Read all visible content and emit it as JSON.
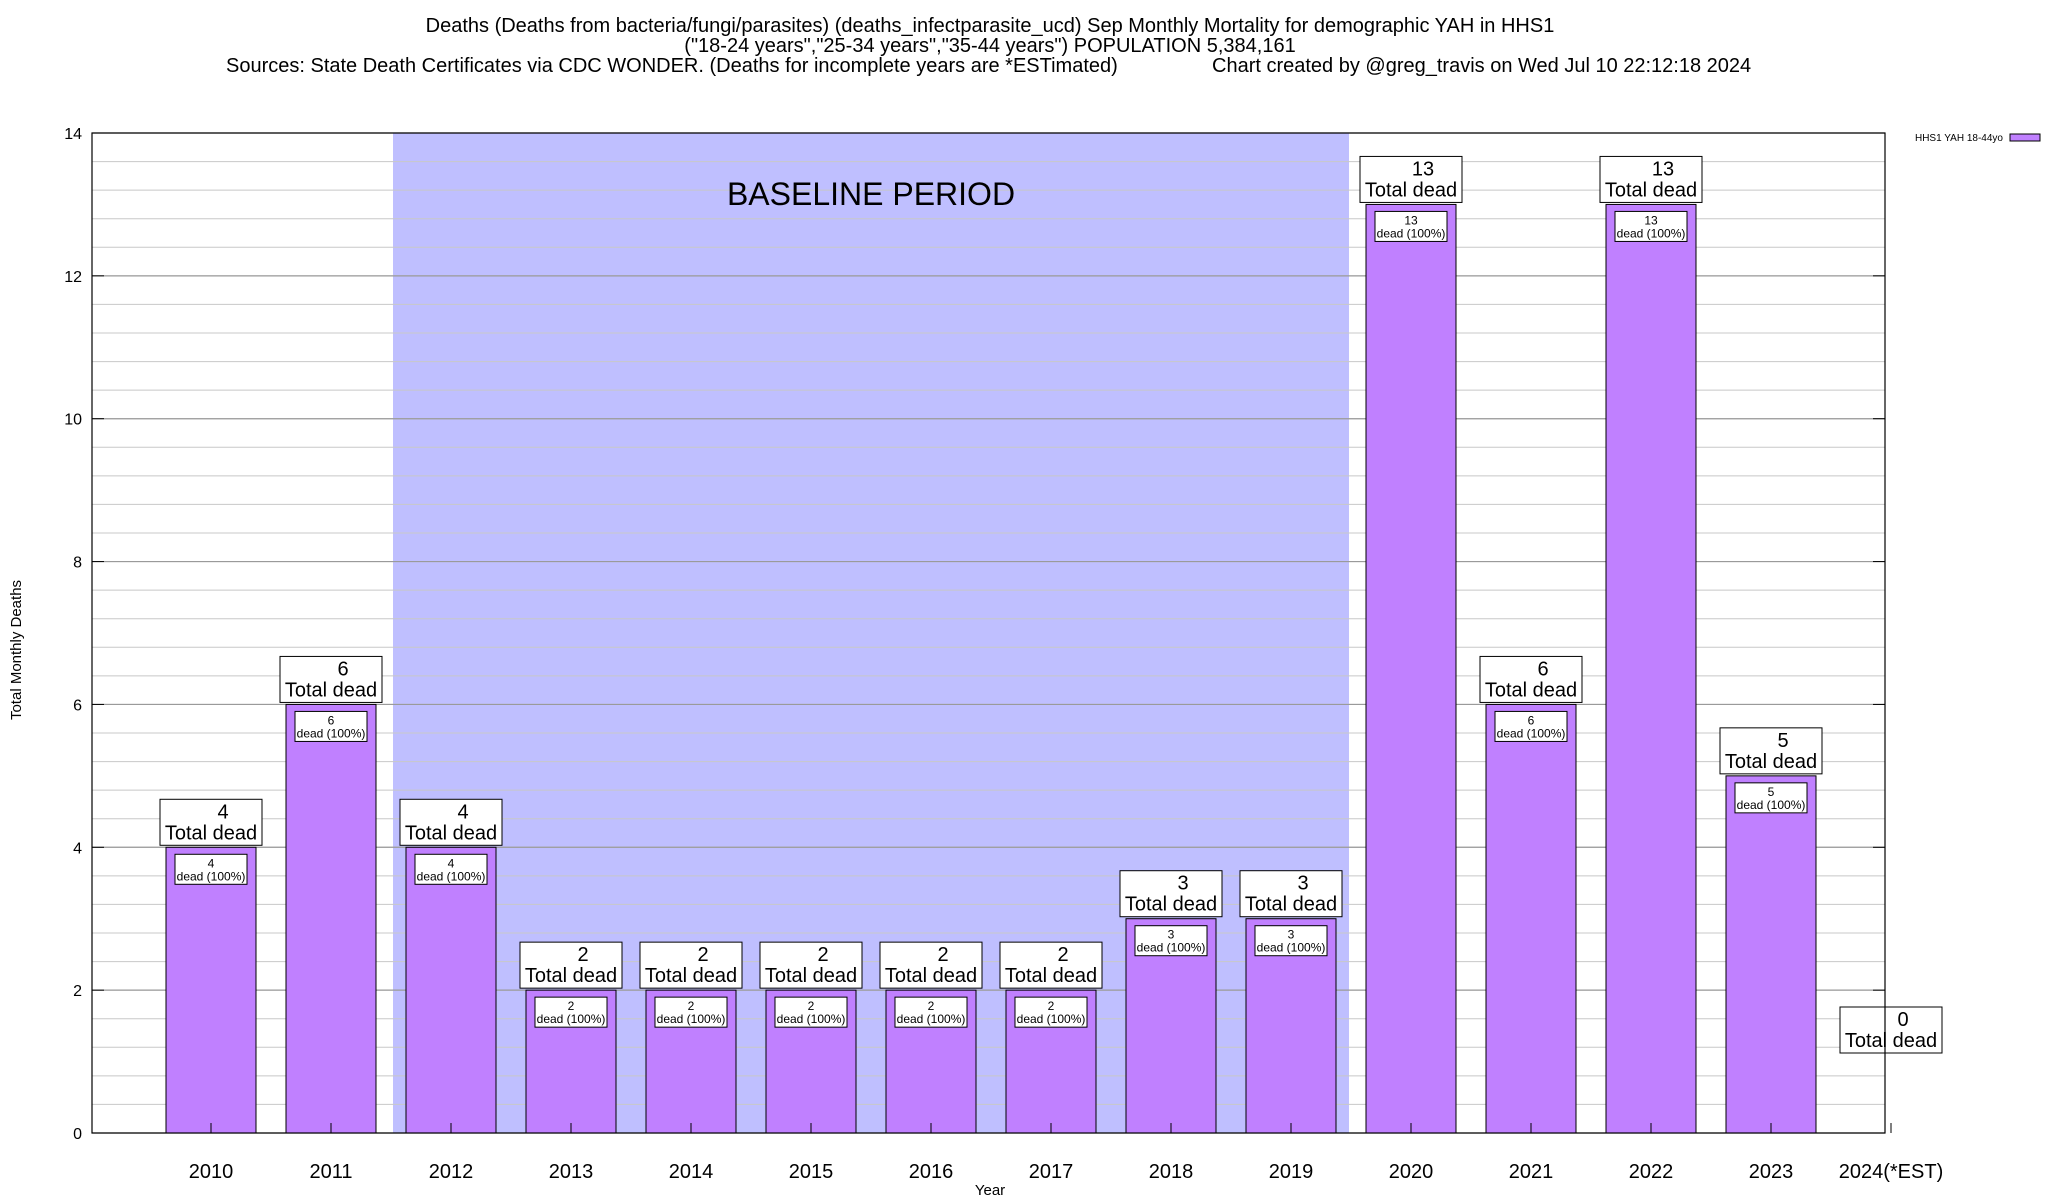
{
  "titles": {
    "line1": "Deaths (Deaths from bacteria/fungi/parasites) (deaths_infectparasite_ucd) Sep Monthly Mortality for demographic YAH in HHS1",
    "line2": "(\"18-24 years\",\"25-34 years\",\"35-44 years\") POPULATION 5,384,161",
    "line3_left": "Sources: State Death Certificates via CDC WONDER. (Deaths for incomplete years are *ESTimated)",
    "line3_right": "Chart created by @greg_travis on Wed Jul 10 22:12:18 2024"
  },
  "chart_data": {
    "type": "bar",
    "categories": [
      "2010",
      "2011",
      "2012",
      "2013",
      "2014",
      "2015",
      "2016",
      "2017",
      "2018",
      "2019",
      "2020",
      "2021",
      "2022",
      "2023",
      "2024(*EST)"
    ],
    "series": [
      {
        "name": "HHS1 YAH 18-44yo",
        "values": [
          4,
          6,
          4,
          2,
          2,
          2,
          2,
          2,
          3,
          3,
          13,
          6,
          13,
          5,
          0
        ]
      }
    ],
    "total_labels": [
      "4",
      "6",
      "4",
      "2",
      "2",
      "2",
      "2",
      "2",
      "3",
      "3",
      "13",
      "6",
      "13",
      "5",
      "0"
    ],
    "total_label_suffix": "Total dead",
    "bar_labels": [
      "4",
      "6",
      "4",
      "2",
      "2",
      "2",
      "2",
      "2",
      "3",
      "3",
      "13",
      "6",
      "13",
      "5",
      ""
    ],
    "bar_label_suffix": "dead (100%)",
    "ylabel": "Total Monthly Deaths",
    "xlabel": "Year",
    "ylim": [
      0,
      14
    ],
    "yticks": [
      0,
      2,
      4,
      6,
      8,
      10,
      12,
      14
    ],
    "ytick_labels": [
      "0",
      "2",
      "4",
      "6",
      "8",
      "10",
      "12",
      "14"
    ],
    "minor_grid_step": 0.4,
    "grid": true,
    "legend_position": "top-right",
    "baseline_period": {
      "from": "2012",
      "to": "2019",
      "label": "BASELINE PERIOD"
    },
    "colors": {
      "bar": "#c080ff",
      "baseline_shade": "#bfbfff",
      "grid": "#c8c8c8",
      "axis": "#000000"
    }
  }
}
